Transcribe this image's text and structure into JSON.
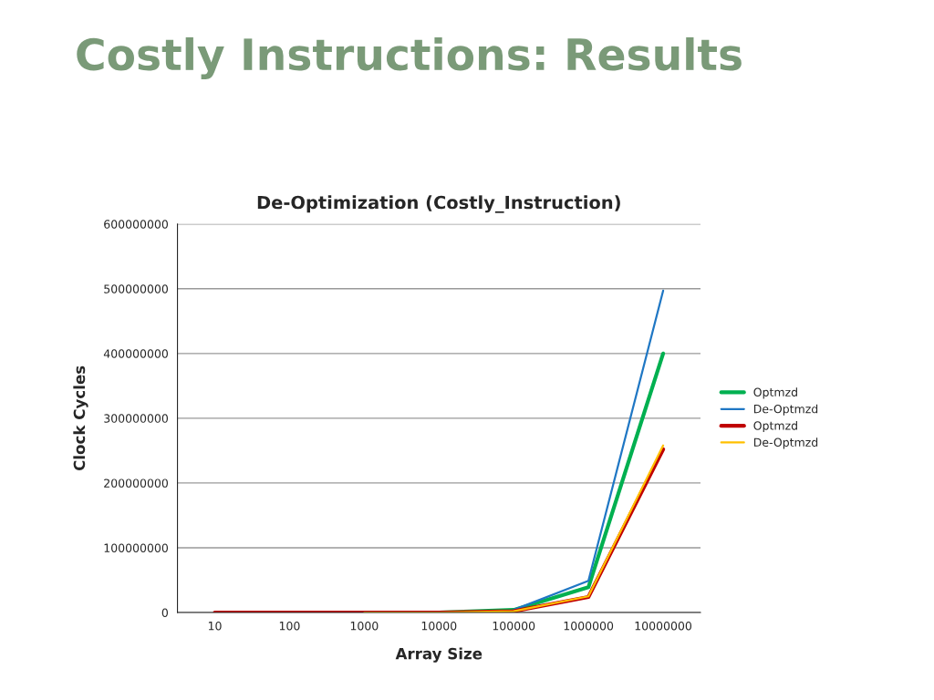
{
  "chart_data": {
    "type": "line",
    "title": "Costly Instructions: Results",
    "subtitle": "De-Optimization (Costly_Instruction)",
    "xlabel": "Array Size",
    "ylabel": "Clock Cycles",
    "categories": [
      "10",
      "100",
      "1000",
      "10000",
      "100000",
      "1000000",
      "10000000"
    ],
    "series": [
      {
        "name": "Optmzd",
        "color": "#00b050",
        "values": [
          null,
          null,
          0,
          0,
          4000000,
          39000000,
          400000000
        ]
      },
      {
        "name": "De-Optmzd",
        "color": "#1f77c4",
        "values": [
          null,
          null,
          null,
          null,
          4000000,
          49000000,
          497000000
        ]
      },
      {
        "name": "Optmzd",
        "color": "#c00000",
        "values": [
          0,
          0,
          0,
          0,
          2000000,
          24000000,
          252000000
        ]
      },
      {
        "name": "De-Optmzd",
        "color": "#ffc000",
        "values": [
          null,
          null,
          0,
          0,
          2000000,
          25000000,
          258000000
        ]
      }
    ],
    "ylim": [
      0,
      600000000
    ],
    "yticks": [
      0,
      100000000,
      200000000,
      300000000,
      400000000,
      500000000,
      600000000
    ],
    "grid": "y",
    "legend": "right",
    "marker": "none",
    "line_style": "solid"
  }
}
